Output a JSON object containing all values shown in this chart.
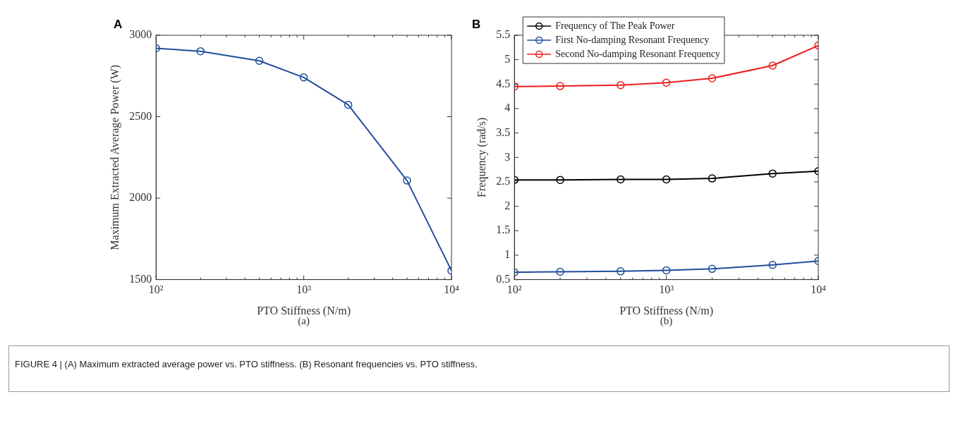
{
  "chart_data": [
    {
      "type": "line",
      "xlabel": "PTO Stiffness (N/m)",
      "ylabel": "Maximum Extracted Average Power (W)",
      "x": [
        100,
        200,
        500,
        1000,
        2000,
        5000,
        10000
      ],
      "values": [
        2920,
        2902,
        2843,
        2741,
        2573,
        2108,
        1555
      ],
      "color": "#1f4e9c",
      "marker": "circle",
      "log": "x",
      "xlim": [
        100,
        10000
      ],
      "xticks": [
        {
          "value": 100,
          "label": "10²"
        },
        {
          "value": 200,
          "label": null
        },
        {
          "value": 300,
          "label": null
        },
        {
          "value": 400,
          "label": null
        },
        {
          "value": 500,
          "label": null
        },
        {
          "value": 600,
          "label": null
        },
        {
          "value": 700,
          "label": null
        },
        {
          "value": 800,
          "label": null
        },
        {
          "value": 900,
          "label": null
        },
        {
          "value": 1000,
          "label": "10³"
        },
        {
          "value": 2000,
          "label": null
        },
        {
          "value": 3000,
          "label": null
        },
        {
          "value": 4000,
          "label": null
        },
        {
          "value": 5000,
          "label": null
        },
        {
          "value": 6000,
          "label": null
        },
        {
          "value": 7000,
          "label": null
        },
        {
          "value": 8000,
          "label": null
        },
        {
          "value": 9000,
          "label": null
        },
        {
          "value": 10000,
          "label": "10⁴"
        }
      ],
      "ylim": [
        1500,
        3000
      ],
      "yticks": [
        1500,
        2000,
        2500,
        3000
      ],
      "grid": false,
      "legend": false,
      "annotations": [
        "A",
        "(a)",
        "FIGURE 4 | (A) Maximum extracted average power vs. PTO stiffness. (B) Resonant frequencies vs. PTO stiffness."
      ]
    },
    {
      "type": "line",
      "xlabel": "PTO Stiffness (N/m)",
      "ylabel": "Frequency (rad/s)",
      "x": [
        100,
        200,
        500,
        1000,
        2000,
        5000,
        10000
      ],
      "marker": "circle",
      "log": "x",
      "xlim": [
        100,
        10000
      ],
      "xticks": [
        {
          "value": 100,
          "label": "10²"
        },
        {
          "value": 200,
          "label": null
        },
        {
          "value": 300,
          "label": null
        },
        {
          "value": 400,
          "label": null
        },
        {
          "value": 500,
          "label": null
        },
        {
          "value": 600,
          "label": null
        },
        {
          "value": 700,
          "label": null
        },
        {
          "value": 800,
          "label": null
        },
        {
          "value": 900,
          "label": null
        },
        {
          "value": 1000,
          "label": "10³"
        },
        {
          "value": 2000,
          "label": null
        },
        {
          "value": 3000,
          "label": null
        },
        {
          "value": 4000,
          "label": null
        },
        {
          "value": 5000,
          "label": null
        },
        {
          "value": 6000,
          "label": null
        },
        {
          "value": 7000,
          "label": null
        },
        {
          "value": 8000,
          "label": null
        },
        {
          "value": 9000,
          "label": null
        },
        {
          "value": 10000,
          "label": "10⁴"
        }
      ],
      "ylim": [
        0.5,
        5.5
      ],
      "yticks": [
        0.5,
        1,
        1.5,
        2,
        2.5,
        3,
        3.5,
        4,
        4.5,
        5,
        5.5
      ],
      "grid": false,
      "legend": "top left",
      "series": [
        {
          "name": "Frequency of The Peak Power",
          "color": "#000000",
          "values": [
            2.54,
            2.54,
            2.55,
            2.55,
            2.57,
            2.67,
            2.72
          ]
        },
        {
          "name": "First No-damping Resonant Frequency",
          "color": "#1f4e9c",
          "values": [
            0.65,
            0.66,
            0.67,
            0.69,
            0.72,
            0.8,
            0.88
          ]
        },
        {
          "name": "Second No-damping Resonant Frequency",
          "color": "#ee1c1c",
          "values": [
            4.45,
            4.46,
            4.48,
            4.53,
            4.62,
            4.88,
            5.29
          ]
        }
      ],
      "annotations": [
        "B",
        "(b)"
      ]
    }
  ]
}
